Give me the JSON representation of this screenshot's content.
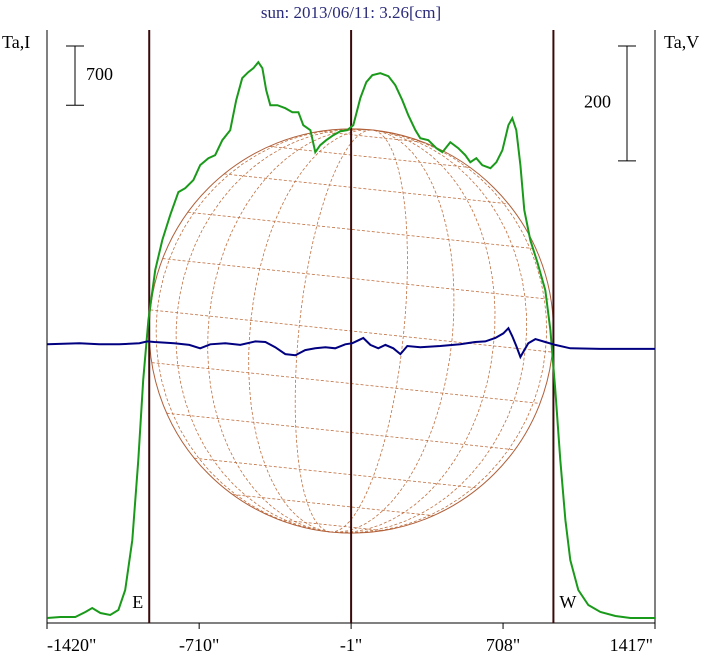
{
  "chart_data": {
    "type": "line",
    "title": "sun: 2013/06/11: 3.26[cm]",
    "ylabel": "Ta,I",
    "y2label": "Ta,V",
    "xlim": [
      -1420,
      1417
    ],
    "ylim": [
      0,
      7000
    ],
    "y2lim": [
      -487,
      545
    ],
    "xticks": [
      {
        "value": -1420,
        "label": "-1420\""
      },
      {
        "value": -710,
        "label": "-710\""
      },
      {
        "value": -1,
        "label": "-1\""
      },
      {
        "value": 708,
        "label": "708\""
      },
      {
        "value": 1417,
        "label": "1417\""
      }
    ],
    "scale_bars": {
      "y": 700,
      "y2": 200
    },
    "limbs": [
      {
        "x": -943,
        "label": "E"
      },
      {
        "x": -1
      },
      {
        "x": 943,
        "label": "W"
      }
    ],
    "series": [
      {
        "name": "I",
        "color": "#1a9a1a",
        "axis": "y",
        "x": [
          -1419,
          -1358,
          -1288,
          -1241,
          -1209,
          -1171,
          -1125,
          -1087,
          -1055,
          -1022,
          -994,
          -971,
          -947,
          -915,
          -882,
          -845,
          -807,
          -775,
          -737,
          -705,
          -667,
          -635,
          -602,
          -565,
          -537,
          -509,
          -481,
          -457,
          -434,
          -415,
          -397,
          -378,
          -345,
          -308,
          -275,
          -247,
          -224,
          -191,
          -168,
          -145,
          -117,
          -84,
          -51,
          -19,
          9,
          42,
          70,
          98,
          135,
          173,
          205,
          238,
          266,
          299,
          322,
          359,
          397,
          425,
          462,
          499,
          532,
          555,
          583,
          611,
          649,
          677,
          705,
          733,
          751,
          770,
          789,
          807,
          835,
          868,
          905,
          929,
          952,
          975,
          999,
          1022,
          1059,
          1106,
          1162,
          1232,
          1302,
          1417
        ],
        "values": [
          59,
          71,
          71,
          130,
          177,
          118,
          94,
          153,
          389,
          979,
          1924,
          2868,
          3575,
          4165,
          4520,
          4815,
          5086,
          5133,
          5228,
          5405,
          5487,
          5523,
          5699,
          5817,
          6171,
          6431,
          6502,
          6549,
          6620,
          6549,
          6289,
          6112,
          6112,
          6077,
          6030,
          6030,
          5876,
          5817,
          5557,
          5640,
          5699,
          5758,
          5805,
          5817,
          5876,
          6195,
          6384,
          6466,
          6490,
          6455,
          6348,
          6171,
          5994,
          5817,
          5723,
          5699,
          5605,
          5557,
          5676,
          5605,
          5522,
          5440,
          5487,
          5404,
          5369,
          5440,
          5581,
          5876,
          5959,
          5817,
          5405,
          4874,
          4520,
          4260,
          3929,
          3457,
          2749,
          1923,
          1215,
          743,
          389,
          212,
          130,
          83,
          59,
          59
        ]
      },
      {
        "name": "V",
        "color": "#000080",
        "axis": "y2",
        "x": [
          -1419,
          -1269,
          -1176,
          -1083,
          -989,
          -952,
          -919,
          -826,
          -756,
          -705,
          -658,
          -588,
          -518,
          -448,
          -401,
          -355,
          -308,
          -261,
          -215,
          -168,
          -121,
          -75,
          -28,
          5,
          33,
          56,
          89,
          126,
          159,
          196,
          229,
          261,
          322,
          415,
          508,
          578,
          625,
          672,
          709,
          733,
          751,
          770,
          789,
          807,
          826,
          859,
          905,
          952,
          1022,
          1162,
          1417
        ],
        "values": [
          -2,
          0,
          -2,
          -2,
          0,
          3,
          2,
          0,
          -3,
          -9,
          -2,
          0,
          -3,
          3,
          2,
          -7,
          -19,
          -21,
          -12,
          -9,
          -7,
          -9,
          -2,
          0,
          5,
          9,
          -3,
          -9,
          -3,
          -9,
          -19,
          -5,
          -7,
          -5,
          -2,
          2,
          3,
          9,
          17,
          26,
          12,
          -5,
          -24,
          -12,
          0,
          7,
          2,
          -3,
          -9,
          -10,
          -10
        ]
      }
    ]
  }
}
